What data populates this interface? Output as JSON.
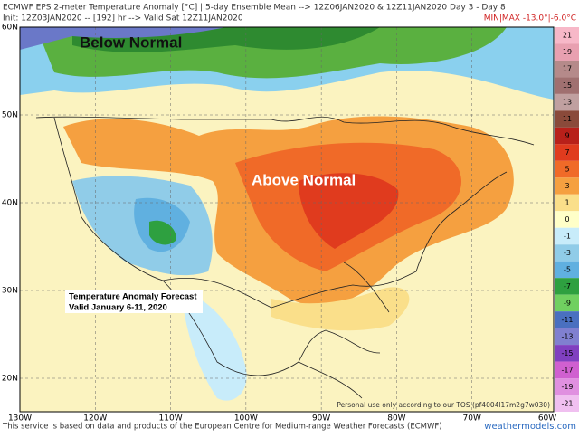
{
  "header": {
    "line1": "ECMWF EPS 2-meter Temperature Anomaly [°C] | 5-day Ensemble Mean --> 12Z06JAN2020 & 12Z11JAN2020   Day 3 - Day 8",
    "line2": "Init: 12Z03JAN2020 -- [192] hr --> Valid Sat 12Z11JAN2020",
    "minmax": "MIN|MAX -13.0°|-6.0°C"
  },
  "map": {
    "lat_labels": [
      "60N",
      "50N",
      "40N",
      "30N",
      "20N"
    ],
    "lon_labels": [
      "130W",
      "120W",
      "110W",
      "100W",
      "90W",
      "80W",
      "70W",
      "60W"
    ],
    "annotations": {
      "below": "Below Normal",
      "above": "Above Normal",
      "box_title": "Temperature Anomaly Forecast",
      "box_valid": "Valid January 6-11, 2020"
    },
    "tos": "Personal use only according to our TOS (pf4004l17m2g7w030)"
  },
  "colorbar": {
    "labels": [
      "21",
      "19",
      "17",
      "15",
      "13",
      "11",
      "9",
      "7",
      "5",
      "3",
      "1",
      "0",
      "-1",
      "-3",
      "-5",
      "-7",
      "-9",
      "-11",
      "-13",
      "-15",
      "-17",
      "-19",
      "-21"
    ],
    "colors": [
      "#f7b8c8",
      "#e8a0b0",
      "#b58a8a",
      "#a07070",
      "#c0a0a0",
      "#8a4a3a",
      "#b8201a",
      "#e03b1e",
      "#f06a28",
      "#f5a040",
      "#fadf8a",
      "#ffffc8",
      "#c8ecfa",
      "#90cce8",
      "#60b0e0",
      "#2ea040",
      "#70d060",
      "#4a70c0",
      "#8080d0",
      "#8040c0",
      "#d060d0",
      "#e090e0",
      "#f0c0f0"
    ]
  },
  "footer": {
    "note": "This service is based on data and products of the European Centre for Medium-range Weather Forecasts (ECMWF)",
    "site": "weathermodels.com"
  }
}
